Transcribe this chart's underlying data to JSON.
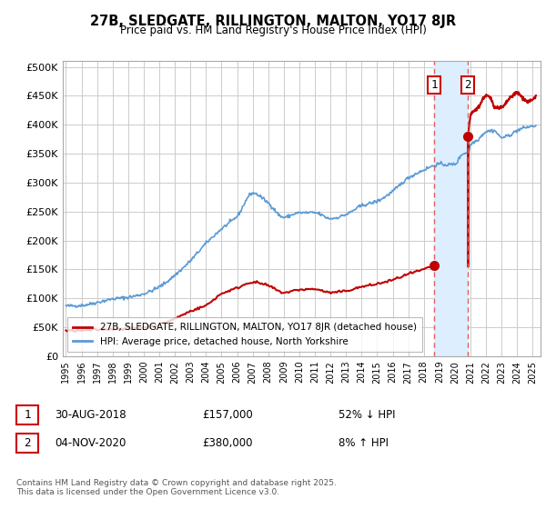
{
  "title1": "27B, SLEDGATE, RILLINGTON, MALTON, YO17 8JR",
  "title2": "Price paid vs. HM Land Registry's House Price Index (HPI)",
  "xlim_start": 1994.8,
  "xlim_end": 2025.5,
  "ylim": [
    0,
    510000
  ],
  "yticks": [
    0,
    50000,
    100000,
    150000,
    200000,
    250000,
    300000,
    350000,
    400000,
    450000,
    500000
  ],
  "ytick_labels": [
    "£0",
    "£50K",
    "£100K",
    "£150K",
    "£200K",
    "£250K",
    "£300K",
    "£350K",
    "£400K",
    "£450K",
    "£500K"
  ],
  "sale1_date": 2018.66,
  "sale1_price": 157000,
  "sale2_date": 2020.84,
  "sale2_price": 380000,
  "hpi_color": "#5b9bd5",
  "price_color": "#c00000",
  "shade_color": "#ddeeff",
  "dashed_color": "#e06060",
  "legend_entry1": "27B, SLEDGATE, RILLINGTON, MALTON, YO17 8JR (detached house)",
  "legend_entry2": "HPI: Average price, detached house, North Yorkshire",
  "annotation1_date": "30-AUG-2018",
  "annotation1_price": "£157,000",
  "annotation1_hpi": "52% ↓ HPI",
  "annotation2_date": "04-NOV-2020",
  "annotation2_price": "£380,000",
  "annotation2_hpi": "8% ↑ HPI",
  "footer": "Contains HM Land Registry data © Crown copyright and database right 2025.\nThis data is licensed under the Open Government Licence v3.0.",
  "bg_color": "#ffffff",
  "plot_bg_color": "#ffffff",
  "grid_color": "#cccccc",
  "hpi_anchors_x": [
    1995,
    1996,
    1997,
    1998,
    1999,
    2000,
    2001,
    2002,
    2003,
    2004,
    2005,
    2006,
    2007,
    2008,
    2009,
    2010,
    2011,
    2012,
    2013,
    2014,
    2015,
    2016,
    2017,
    2018,
    2018.5,
    2019,
    2019.5,
    2020,
    2020.5,
    2020.84,
    2021,
    2021.5,
    2022,
    2022.5,
    2023,
    2023.5,
    2024,
    2024.5,
    2025.2
  ],
  "hpi_anchors_y": [
    87000,
    88000,
    93000,
    99000,
    102000,
    108000,
    120000,
    140000,
    165000,
    195000,
    220000,
    242000,
    282000,
    265000,
    240000,
    248000,
    248000,
    238000,
    245000,
    260000,
    268000,
    285000,
    308000,
    322000,
    328000,
    332000,
    331000,
    332000,
    350000,
    352000,
    365000,
    375000,
    388000,
    390000,
    378000,
    382000,
    390000,
    395000,
    398000
  ],
  "price_anchors_x": [
    1995,
    1996,
    1997,
    1998,
    1999,
    2000,
    2001,
    2002,
    2003,
    2004,
    2005,
    2006,
    2007,
    2008,
    2009,
    2010,
    2011,
    2012,
    2013,
    2014,
    2015,
    2016,
    2017,
    2018,
    2018.66
  ],
  "price_anchors_y": [
    44000,
    44500,
    46000,
    47000,
    48000,
    50000,
    55000,
    65000,
    78000,
    88000,
    108000,
    118000,
    128000,
    122000,
    110000,
    115000,
    116000,
    110000,
    113000,
    120000,
    125000,
    132000,
    142000,
    150000,
    157000
  ],
  "price_after_x": [
    2020.84,
    2021,
    2021.5,
    2022,
    2022.3,
    2022.6,
    2023,
    2023.5,
    2024,
    2024.3,
    2024.7,
    2025.2
  ],
  "price_after_y": [
    380000,
    415000,
    430000,
    450000,
    445000,
    430000,
    430000,
    445000,
    455000,
    448000,
    440000,
    450000
  ]
}
